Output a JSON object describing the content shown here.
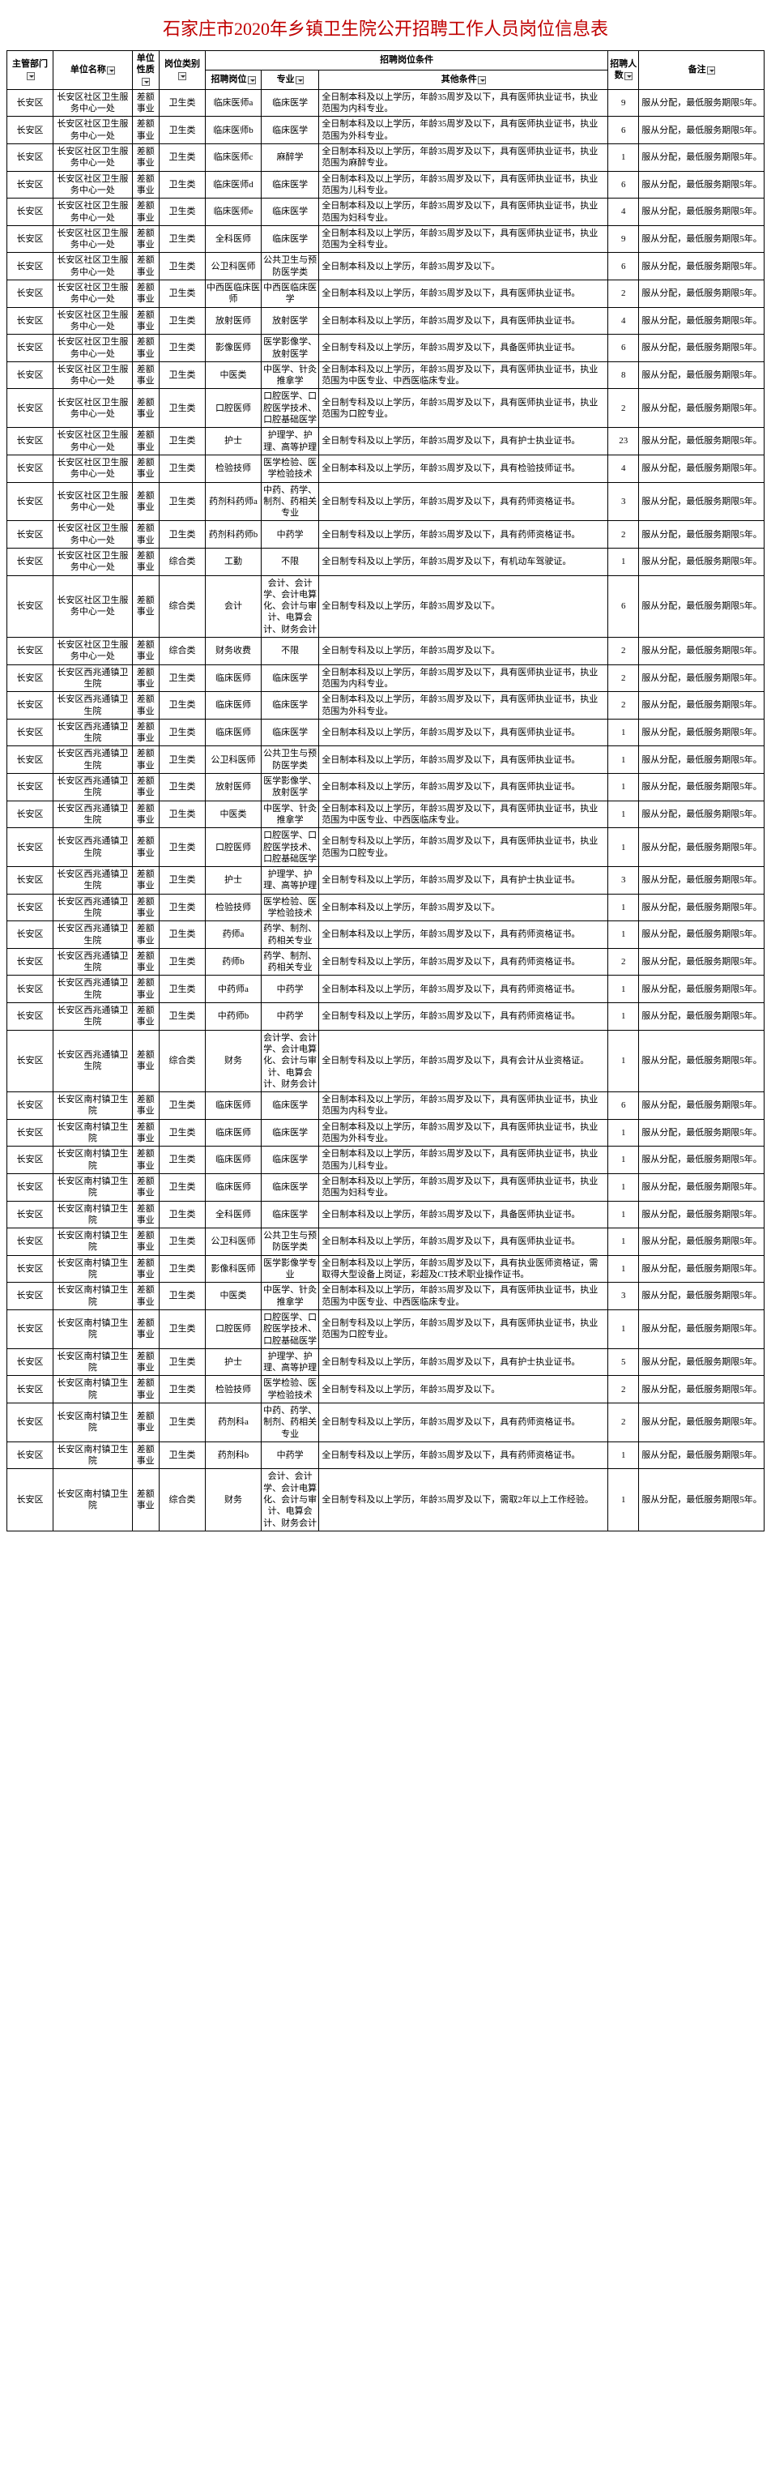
{
  "title": "石家庄市2020年乡镇卫生院公开招聘工作人员岗位信息表",
  "headers": {
    "dept": "主管部门",
    "unit": "单位名称",
    "nature": "单位性质",
    "poscat": "岗位类别",
    "cond_group": "招聘岗位条件",
    "posname": "招聘岗位",
    "major": "专业",
    "other": "其他条件",
    "count": "招聘人数",
    "remark": "备注"
  },
  "rows": [
    {
      "dept": "长安区",
      "unit": "长安区社区卫生服务中心一处",
      "nature": "差额事业",
      "poscat": "卫生类",
      "posname": "临床医师a",
      "major": "临床医学",
      "other": "全日制本科及以上学历，年龄35周岁及以下，具有医师执业证书，执业范围为内科专业。",
      "count": "9",
      "remark": "服从分配，最低服务期限5年。"
    },
    {
      "dept": "长安区",
      "unit": "长安区社区卫生服务中心一处",
      "nature": "差额事业",
      "poscat": "卫生类",
      "posname": "临床医师b",
      "major": "临床医学",
      "other": "全日制本科及以上学历，年龄35周岁及以下，具有医师执业证书，执业范围为外科专业。",
      "count": "6",
      "remark": "服从分配，最低服务期限5年。"
    },
    {
      "dept": "长安区",
      "unit": "长安区社区卫生服务中心一处",
      "nature": "差额事业",
      "poscat": "卫生类",
      "posname": "临床医师c",
      "major": "麻醉学",
      "other": "全日制本科及以上学历，年龄35周岁及以下，具有医师执业证书，执业范围为麻醉专业。",
      "count": "1",
      "remark": "服从分配，最低服务期限5年。"
    },
    {
      "dept": "长安区",
      "unit": "长安区社区卫生服务中心一处",
      "nature": "差额事业",
      "poscat": "卫生类",
      "posname": "临床医师d",
      "major": "临床医学",
      "other": "全日制本科及以上学历，年龄35周岁及以下，具有医师执业证书，执业范围为儿科专业。",
      "count": "6",
      "remark": "服从分配，最低服务期限5年。"
    },
    {
      "dept": "长安区",
      "unit": "长安区社区卫生服务中心一处",
      "nature": "差额事业",
      "poscat": "卫生类",
      "posname": "临床医师e",
      "major": "临床医学",
      "other": "全日制本科及以上学历，年龄35周岁及以下，具有医师执业证书，执业范围为妇科专业。",
      "count": "4",
      "remark": "服从分配，最低服务期限5年。"
    },
    {
      "dept": "长安区",
      "unit": "长安区社区卫生服务中心一处",
      "nature": "差额事业",
      "poscat": "卫生类",
      "posname": "全科医师",
      "major": "临床医学",
      "other": "全日制本科及以上学历，年龄35周岁及以下，具有医师执业证书，执业范围为全科专业。",
      "count": "9",
      "remark": "服从分配，最低服务期限5年。"
    },
    {
      "dept": "长安区",
      "unit": "长安区社区卫生服务中心一处",
      "nature": "差额事业",
      "poscat": "卫生类",
      "posname": "公卫科医师",
      "major": "公共卫生与预防医学类",
      "other": "全日制本科及以上学历，年龄35周岁及以下。",
      "count": "6",
      "remark": "服从分配，最低服务期限5年。"
    },
    {
      "dept": "长安区",
      "unit": "长安区社区卫生服务中心一处",
      "nature": "差额事业",
      "poscat": "卫生类",
      "posname": "中西医临床医师",
      "major": "中西医临床医学",
      "other": "全日制本科及以上学历，年龄35周岁及以下，具有医师执业证书。",
      "count": "2",
      "remark": "服从分配，最低服务期限5年。"
    },
    {
      "dept": "长安区",
      "unit": "长安区社区卫生服务中心一处",
      "nature": "差额事业",
      "poscat": "卫生类",
      "posname": "放射医师",
      "major": "放射医学",
      "other": "全日制本科及以上学历，年龄35周岁及以下，具有医师执业证书。",
      "count": "4",
      "remark": "服从分配，最低服务期限5年。"
    },
    {
      "dept": "长安区",
      "unit": "长安区社区卫生服务中心一处",
      "nature": "差额事业",
      "poscat": "卫生类",
      "posname": "影像医师",
      "major": "医学影像学、放射医学",
      "other": "全日制专科及以上学历，年龄35周岁及以下，具备医师执业证书。",
      "count": "6",
      "remark": "服从分配，最低服务期限5年。"
    },
    {
      "dept": "长安区",
      "unit": "长安区社区卫生服务中心一处",
      "nature": "差额事业",
      "poscat": "卫生类",
      "posname": "中医类",
      "major": "中医学、针灸推拿学",
      "other": "全日制本科及以上学历，年龄35周岁及以下，具有医师执业证书，执业范围为中医专业、中西医临床专业。",
      "count": "8",
      "remark": "服从分配，最低服务期限5年。"
    },
    {
      "dept": "长安区",
      "unit": "长安区社区卫生服务中心一处",
      "nature": "差额事业",
      "poscat": "卫生类",
      "posname": "口腔医师",
      "major": "口腔医学、口腔医学技术、口腔基础医学",
      "other": "全日制专科及以上学历，年龄35周岁及以下，具有医师执业证书，执业范围为口腔专业。",
      "count": "2",
      "remark": "服从分配，最低服务期限5年。"
    },
    {
      "dept": "长安区",
      "unit": "长安区社区卫生服务中心一处",
      "nature": "差额事业",
      "poscat": "卫生类",
      "posname": "护士",
      "major": "护理学、护理、高等护理",
      "other": "全日制专科及以上学历，年龄35周岁及以下，具有护士执业证书。",
      "count": "23",
      "remark": "服从分配，最低服务期限5年。"
    },
    {
      "dept": "长安区",
      "unit": "长安区社区卫生服务中心一处",
      "nature": "差额事业",
      "poscat": "卫生类",
      "posname": "检验技师",
      "major": "医学检验、医学检验技术",
      "other": "全日制本科及以上学历，年龄35周岁及以下，具有检验技师证书。",
      "count": "4",
      "remark": "服从分配，最低服务期限5年。"
    },
    {
      "dept": "长安区",
      "unit": "长安区社区卫生服务中心一处",
      "nature": "差额事业",
      "poscat": "卫生类",
      "posname": "药剂科药师a",
      "major": "中药、药学、制剂、药相关专业",
      "other": "全日制专科及以上学历，年龄35周岁及以下，具有药师资格证书。",
      "count": "3",
      "remark": "服从分配，最低服务期限5年。"
    },
    {
      "dept": "长安区",
      "unit": "长安区社区卫生服务中心一处",
      "nature": "差额事业",
      "poscat": "卫生类",
      "posname": "药剂科药师b",
      "major": "中药学",
      "other": "全日制专科及以上学历，年龄35周岁及以下，具有药师资格证书。",
      "count": "2",
      "remark": "服从分配，最低服务期限5年。"
    },
    {
      "dept": "长安区",
      "unit": "长安区社区卫生服务中心一处",
      "nature": "差额事业",
      "poscat": "综合类",
      "posname": "工勤",
      "major": "不限",
      "other": "全日制专科及以上学历，年龄35周岁及以下，有机动车驾驶证。",
      "count": "1",
      "remark": "服从分配，最低服务期限5年。"
    },
    {
      "dept": "长安区",
      "unit": "长安区社区卫生服务中心一处",
      "nature": "差额事业",
      "poscat": "综合类",
      "posname": "会计",
      "major": "会计、会计学、会计电算化、会计与审计、电算会计、财务会计",
      "other": "全日制专科及以上学历，年龄35周岁及以下。",
      "count": "6",
      "remark": "服从分配，最低服务期限5年。"
    },
    {
      "dept": "长安区",
      "unit": "长安区社区卫生服务中心一处",
      "nature": "差额事业",
      "poscat": "综合类",
      "posname": "财务收费",
      "major": "不限",
      "other": "全日制专科及以上学历，年龄35周岁及以下。",
      "count": "2",
      "remark": "服从分配，最低服务期限5年。"
    },
    {
      "dept": "长安区",
      "unit": "长安区西兆通镇卫生院",
      "nature": "差额事业",
      "poscat": "卫生类",
      "posname": "临床医师",
      "major": "临床医学",
      "other": "全日制本科及以上学历，年龄35周岁及以下，具有医师执业证书，执业范围为内科专业。",
      "count": "2",
      "remark": "服从分配，最低服务期限5年。"
    },
    {
      "dept": "长安区",
      "unit": "长安区西兆通镇卫生院",
      "nature": "差额事业",
      "poscat": "卫生类",
      "posname": "临床医师",
      "major": "临床医学",
      "other": "全日制本科及以上学历，年龄35周岁及以下，具有医师执业证书，执业范围为外科专业。",
      "count": "2",
      "remark": "服从分配，最低服务期限5年。"
    },
    {
      "dept": "长安区",
      "unit": "长安区西兆通镇卫生院",
      "nature": "差额事业",
      "poscat": "卫生类",
      "posname": "临床医师",
      "major": "临床医学",
      "other": "全日制本科及以上学历，年龄35周岁及以下，具有医师执业证书。",
      "count": "1",
      "remark": "服从分配，最低服务期限5年。"
    },
    {
      "dept": "长安区",
      "unit": "长安区西兆通镇卫生院",
      "nature": "差额事业",
      "poscat": "卫生类",
      "posname": "公卫科医师",
      "major": "公共卫生与预防医学类",
      "other": "全日制本科及以上学历，年龄35周岁及以下，具有医师执业证书。",
      "count": "1",
      "remark": "服从分配，最低服务期限5年。"
    },
    {
      "dept": "长安区",
      "unit": "长安区西兆通镇卫生院",
      "nature": "差额事业",
      "poscat": "卫生类",
      "posname": "放射医师",
      "major": "医学影像学、放射医学",
      "other": "全日制本科及以上学历，年龄35周岁及以下，具有医师执业证书。",
      "count": "1",
      "remark": "服从分配，最低服务期限5年。"
    },
    {
      "dept": "长安区",
      "unit": "长安区西兆通镇卫生院",
      "nature": "差额事业",
      "poscat": "卫生类",
      "posname": "中医类",
      "major": "中医学、针灸推拿学",
      "other": "全日制本科及以上学历，年龄35周岁及以下，具有医师执业证书，执业范围为中医专业、中西医临床专业。",
      "count": "1",
      "remark": "服从分配，最低服务期限5年。"
    },
    {
      "dept": "长安区",
      "unit": "长安区西兆通镇卫生院",
      "nature": "差额事业",
      "poscat": "卫生类",
      "posname": "口腔医师",
      "major": "口腔医学、口腔医学技术、口腔基础医学",
      "other": "全日制专科及以上学历，年龄35周岁及以下，具有医师执业证书，执业范围为口腔专业。",
      "count": "1",
      "remark": "服从分配，最低服务期限5年。"
    },
    {
      "dept": "长安区",
      "unit": "长安区西兆通镇卫生院",
      "nature": "差额事业",
      "poscat": "卫生类",
      "posname": "护士",
      "major": "护理学、护理、高等护理",
      "other": "全日制专科及以上学历，年龄35周岁及以下，具有护士执业证书。",
      "count": "3",
      "remark": "服从分配，最低服务期限5年。"
    },
    {
      "dept": "长安区",
      "unit": "长安区西兆通镇卫生院",
      "nature": "差额事业",
      "poscat": "卫生类",
      "posname": "检验技师",
      "major": "医学检验、医学检验技术",
      "other": "全日制本科及以上学历，年龄35周岁及以下。",
      "count": "1",
      "remark": "服从分配，最低服务期限5年。"
    },
    {
      "dept": "长安区",
      "unit": "长安区西兆通镇卫生院",
      "nature": "差额事业",
      "poscat": "卫生类",
      "posname": "药师a",
      "major": "药学、制剂、药相关专业",
      "other": "全日制本科及以上学历，年龄35周岁及以下，具有药师资格证书。",
      "count": "1",
      "remark": "服从分配，最低服务期限5年。"
    },
    {
      "dept": "长安区",
      "unit": "长安区西兆通镇卫生院",
      "nature": "差额事业",
      "poscat": "卫生类",
      "posname": "药师b",
      "major": "药学、制剂、药相关专业",
      "other": "全日制专科及以上学历，年龄35周岁及以下，具有药师资格证书。",
      "count": "2",
      "remark": "服从分配，最低服务期限5年。"
    },
    {
      "dept": "长安区",
      "unit": "长安区西兆通镇卫生院",
      "nature": "差额事业",
      "poscat": "卫生类",
      "posname": "中药师a",
      "major": "中药学",
      "other": "全日制本科及以上学历，年龄35周岁及以下，具有药师资格证书。",
      "count": "1",
      "remark": "服从分配，最低服务期限5年。"
    },
    {
      "dept": "长安区",
      "unit": "长安区西兆通镇卫生院",
      "nature": "差额事业",
      "poscat": "卫生类",
      "posname": "中药师b",
      "major": "中药学",
      "other": "全日制专科及以上学历，年龄35周岁及以下，具有药师资格证书。",
      "count": "1",
      "remark": "服从分配，最低服务期限5年。"
    },
    {
      "dept": "长安区",
      "unit": "长安区西兆通镇卫生院",
      "nature": "差额事业",
      "poscat": "综合类",
      "posname": "财务",
      "major": "会计学、会计学、会计电算化、会计与审计、电算会计、财务会计",
      "other": "全日制专科及以上学历，年龄35周岁及以下，具有会计从业资格证。",
      "count": "1",
      "remark": "服从分配，最低服务期限5年。"
    },
    {
      "dept": "长安区",
      "unit": "长安区南村镇卫生院",
      "nature": "差额事业",
      "poscat": "卫生类",
      "posname": "临床医师",
      "major": "临床医学",
      "other": "全日制本科及以上学历，年龄35周岁及以下，具有医师执业证书，执业范围为内科专业。",
      "count": "6",
      "remark": "服从分配，最低服务期限5年。"
    },
    {
      "dept": "长安区",
      "unit": "长安区南村镇卫生院",
      "nature": "差额事业",
      "poscat": "卫生类",
      "posname": "临床医师",
      "major": "临床医学",
      "other": "全日制本科及以上学历，年龄35周岁及以下，具有医师执业证书，执业范围为外科专业。",
      "count": "1",
      "remark": "服从分配，最低服务期限5年。"
    },
    {
      "dept": "长安区",
      "unit": "长安区南村镇卫生院",
      "nature": "差额事业",
      "poscat": "卫生类",
      "posname": "临床医师",
      "major": "临床医学",
      "other": "全日制本科及以上学历，年龄35周岁及以下，具有医师执业证书，执业范围为儿科专业。",
      "count": "1",
      "remark": "服从分配，最低服务期限5年。"
    },
    {
      "dept": "长安区",
      "unit": "长安区南村镇卫生院",
      "nature": "差额事业",
      "poscat": "卫生类",
      "posname": "临床医师",
      "major": "临床医学",
      "other": "全日制本科及以上学历，年龄35周岁及以下，具有医师执业证书，执业范围为妇科专业。",
      "count": "1",
      "remark": "服从分配，最低服务期限5年。"
    },
    {
      "dept": "长安区",
      "unit": "长安区南村镇卫生院",
      "nature": "差额事业",
      "poscat": "卫生类",
      "posname": "全科医师",
      "major": "临床医学",
      "other": "全日制本科及以上学历，年龄35周岁及以下，具备医师执业证书。",
      "count": "1",
      "remark": "服从分配，最低服务期限5年。"
    },
    {
      "dept": "长安区",
      "unit": "长安区南村镇卫生院",
      "nature": "差额事业",
      "poscat": "卫生类",
      "posname": "公卫科医师",
      "major": "公共卫生与预防医学类",
      "other": "全日制本科及以上学历，年龄35周岁及以下，具有医师执业证书。",
      "count": "1",
      "remark": "服从分配，最低服务期限5年。"
    },
    {
      "dept": "长安区",
      "unit": "长安区南村镇卫生院",
      "nature": "差额事业",
      "poscat": "卫生类",
      "posname": "影像科医师",
      "major": "医学影像学专业",
      "other": "全日制本科及以上学历，年龄35周岁及以下，具有执业医师资格证，需取得大型设备上岗证，彩超及CT技术职业操作证书。",
      "count": "1",
      "remark": "服从分配，最低服务期限5年。"
    },
    {
      "dept": "长安区",
      "unit": "长安区南村镇卫生院",
      "nature": "差额事业",
      "poscat": "卫生类",
      "posname": "中医类",
      "major": "中医学、针灸推拿学",
      "other": "全日制本科及以上学历，年龄35周岁及以下，具有医师执业证书，执业范围为中医专业、中西医临床专业。",
      "count": "3",
      "remark": "服从分配，最低服务期限5年。"
    },
    {
      "dept": "长安区",
      "unit": "长安区南村镇卫生院",
      "nature": "差额事业",
      "poscat": "卫生类",
      "posname": "口腔医师",
      "major": "口腔医学、口腔医学技术、口腔基础医学",
      "other": "全日制专科及以上学历，年龄35周岁及以下，具有医师执业证书，执业范围为口腔专业。",
      "count": "1",
      "remark": "服从分配，最低服务期限5年。"
    },
    {
      "dept": "长安区",
      "unit": "长安区南村镇卫生院",
      "nature": "差额事业",
      "poscat": "卫生类",
      "posname": "护士",
      "major": "护理学、护理、高等护理",
      "other": "全日制专科及以上学历，年龄35周岁及以下，具有护士执业证书。",
      "count": "5",
      "remark": "服从分配，最低服务期限5年。"
    },
    {
      "dept": "长安区",
      "unit": "长安区南村镇卫生院",
      "nature": "差额事业",
      "poscat": "卫生类",
      "posname": "检验技师",
      "major": "医学检验、医学检验技术",
      "other": "全日制专科及以上学历，年龄35周岁及以下。",
      "count": "2",
      "remark": "服从分配，最低服务期限5年。"
    },
    {
      "dept": "长安区",
      "unit": "长安区南村镇卫生院",
      "nature": "差额事业",
      "poscat": "卫生类",
      "posname": "药剂科a",
      "major": "中药、药学、制剂、药相关专业",
      "other": "全日制专科及以上学历，年龄35周岁及以下，具有药师资格证书。",
      "count": "2",
      "remark": "服从分配，最低服务期限5年。"
    },
    {
      "dept": "长安区",
      "unit": "长安区南村镇卫生院",
      "nature": "差额事业",
      "poscat": "卫生类",
      "posname": "药剂科b",
      "major": "中药学",
      "other": "全日制专科及以上学历，年龄35周岁及以下，具有药师资格证书。",
      "count": "1",
      "remark": "服从分配，最低服务期限5年。"
    },
    {
      "dept": "长安区",
      "unit": "长安区南村镇卫生院",
      "nature": "差额事业",
      "poscat": "综合类",
      "posname": "财务",
      "major": "会计、会计学、会计电算化、会计与审计、电算会计、财务会计",
      "other": "全日制专科及以上学历，年龄35周岁及以下，需取2年以上工作经验。",
      "count": "1",
      "remark": "服从分配，最低服务期限5年。"
    }
  ]
}
